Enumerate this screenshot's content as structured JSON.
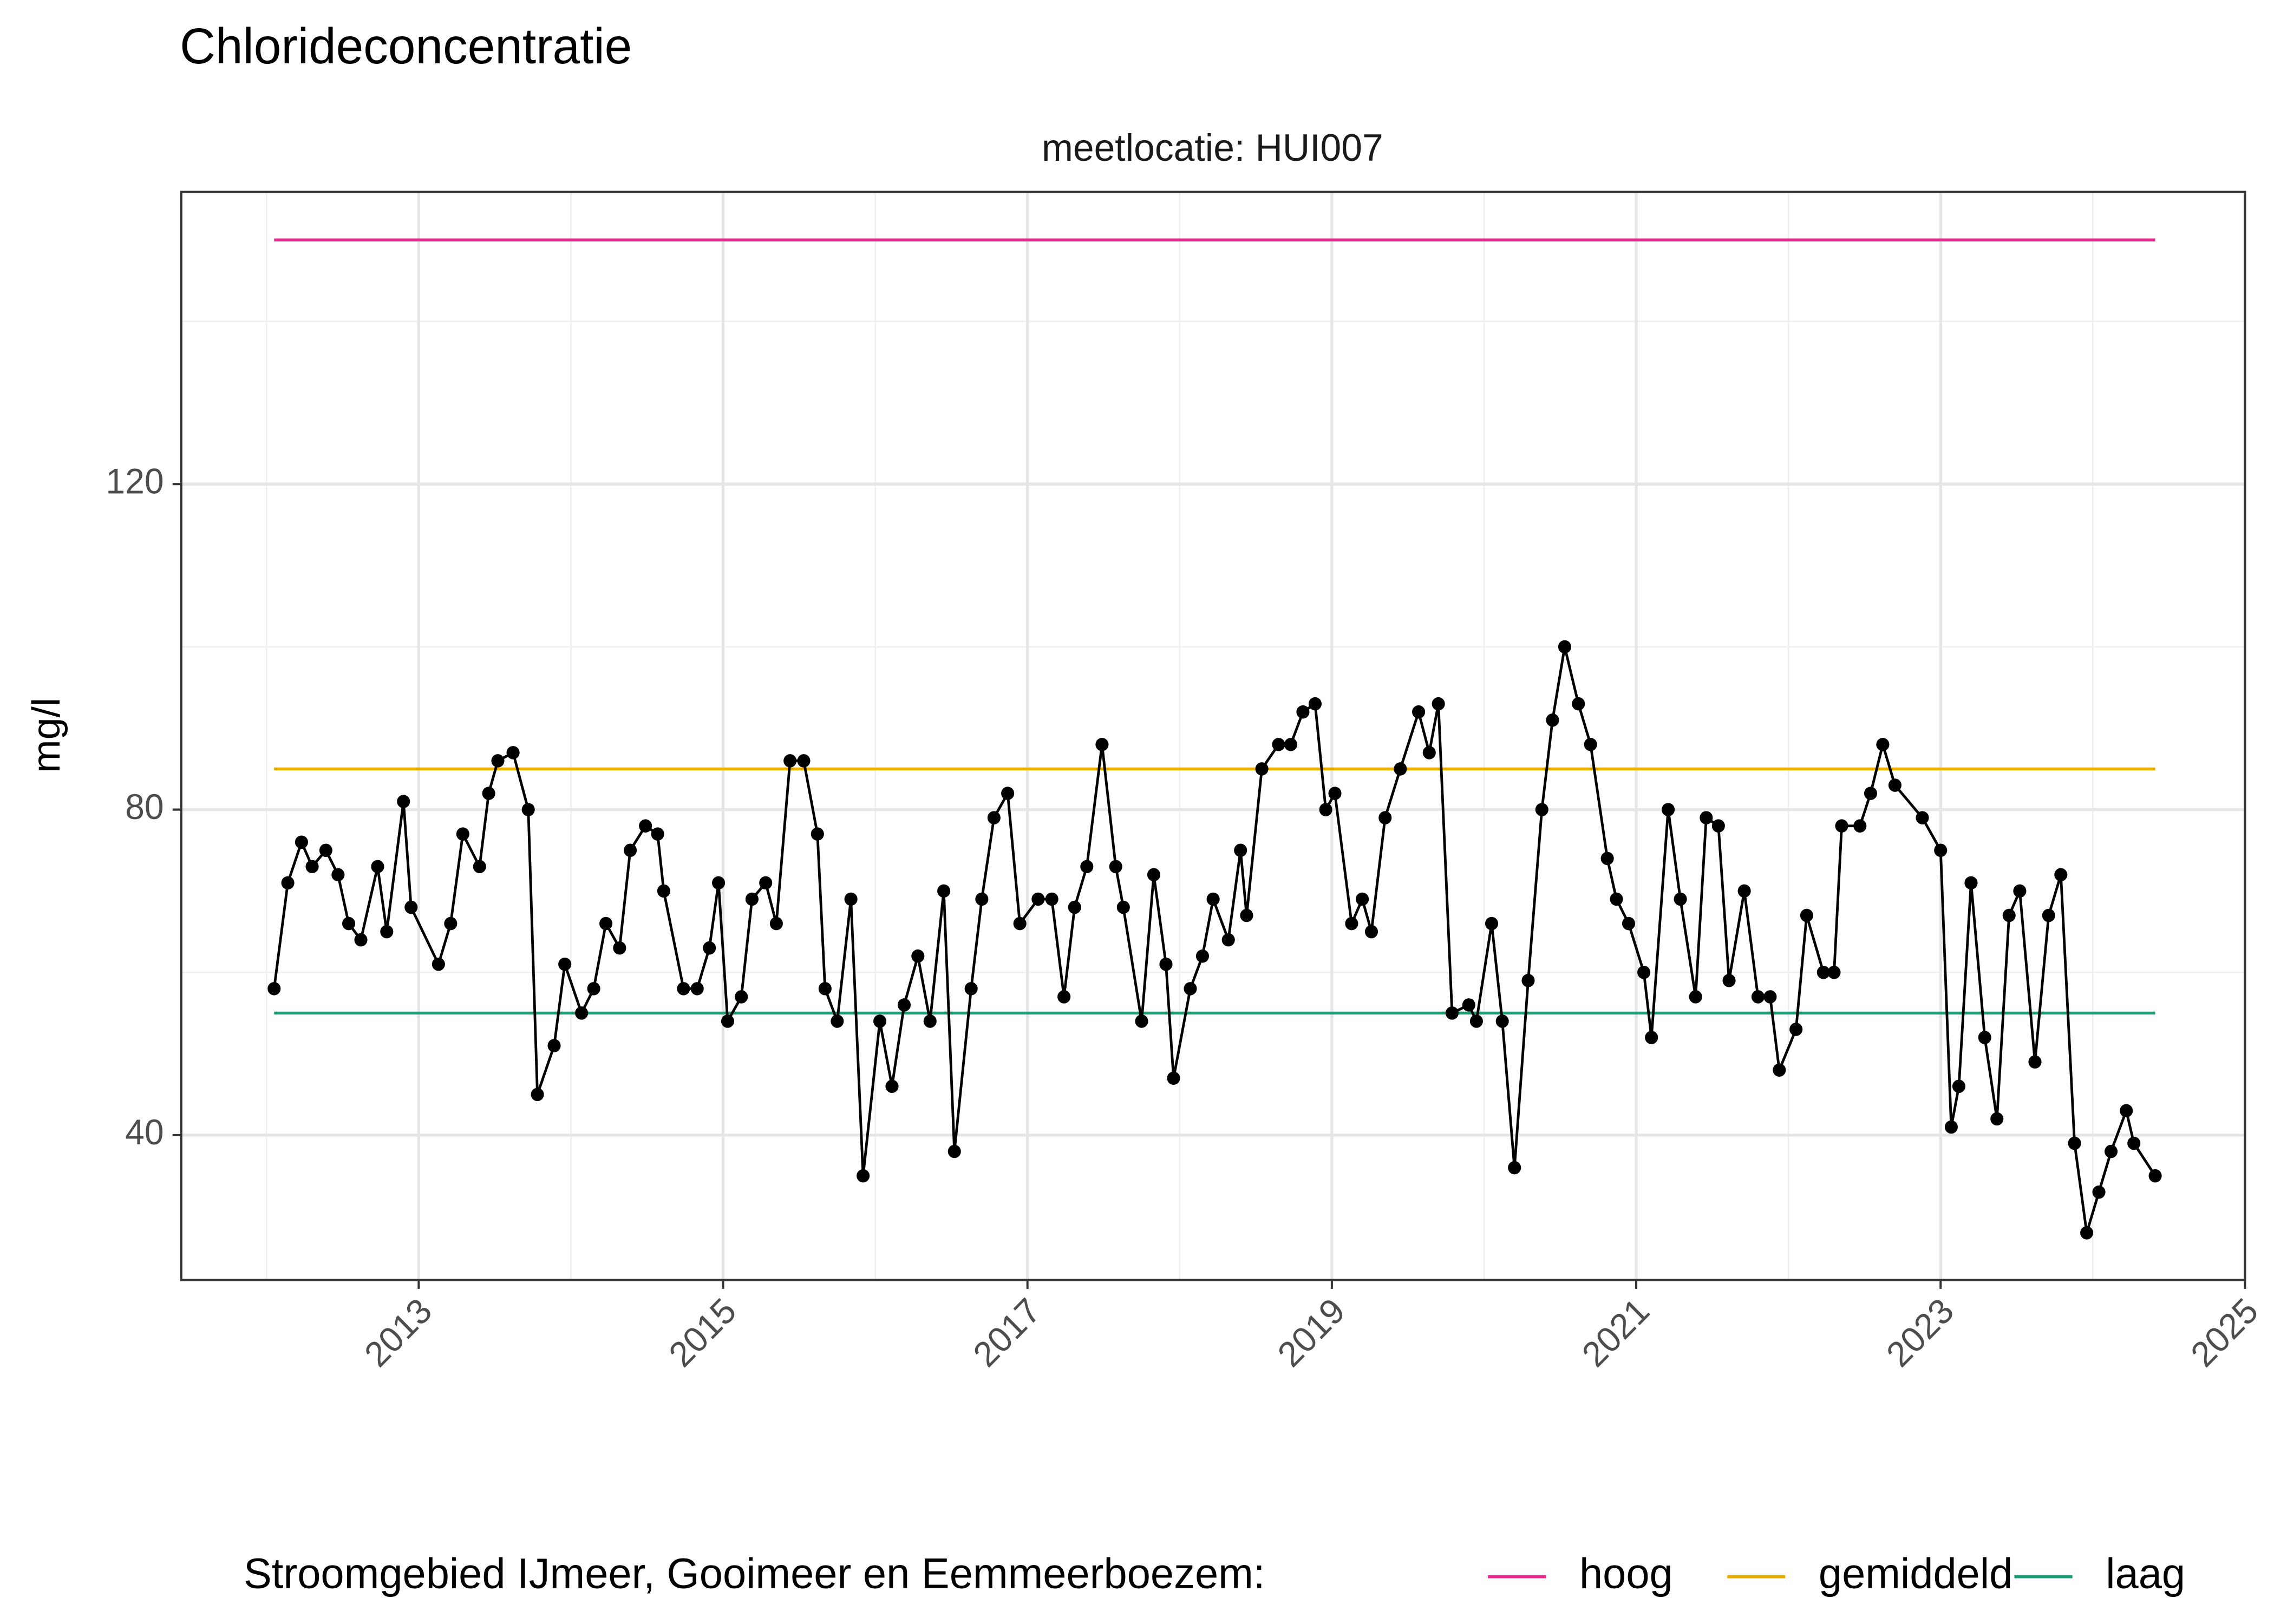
{
  "chart_data": {
    "type": "line",
    "title": "Chlorideconcentratie",
    "subtitle": "meetlocatie: HUI007",
    "ylabel": "mg/l",
    "legend_title": "Stroomgebied IJmeer, Gooimeer en Eemmeerboezem:",
    "legend_position": "bottom",
    "grid": true,
    "color": "#000000",
    "xlim": [
      2011.44,
      2025
    ],
    "xticks": [
      2013,
      2015,
      2017,
      2019,
      2021,
      2023,
      2025
    ],
    "ylim": [
      22.2,
      155.9
    ],
    "yticks": [
      40,
      80,
      120
    ],
    "x": [
      2012.05,
      2012.14,
      2012.23,
      2012.3,
      2012.39,
      2012.47,
      2012.54,
      2012.62,
      2012.73,
      2012.79,
      2012.9,
      2012.95,
      2013.13,
      2013.21,
      2013.29,
      2013.4,
      2013.46,
      2013.52,
      2013.62,
      2013.72,
      2013.78,
      2013.89,
      2013.96,
      2014.07,
      2014.15,
      2014.23,
      2014.32,
      2014.39,
      2014.49,
      2014.57,
      2014.61,
      2014.74,
      2014.83,
      2014.91,
      2014.97,
      2015.03,
      2015.12,
      2015.19,
      2015.28,
      2015.35,
      2015.44,
      2015.53,
      2015.62,
      2015.67,
      2015.75,
      2015.84,
      2015.92,
      2016.03,
      2016.11,
      2016.19,
      2016.28,
      2016.36,
      2016.45,
      2016.52,
      2016.63,
      2016.7,
      2016.78,
      2016.87,
      2016.95,
      2017.07,
      2017.16,
      2017.24,
      2017.31,
      2017.39,
      2017.49,
      2017.58,
      2017.63,
      2017.75,
      2017.83,
      2017.91,
      2017.96,
      2018.07,
      2018.15,
      2018.22,
      2018.32,
      2018.4,
      2018.44,
      2018.54,
      2018.65,
      2018.73,
      2018.81,
      2018.89,
      2018.96,
      2019.02,
      2019.13,
      2019.2,
      2019.26,
      2019.35,
      2019.45,
      2019.57,
      2019.64,
      2019.7,
      2019.79,
      2019.9,
      2019.95,
      2020.05,
      2020.12,
      2020.2,
      2020.29,
      2020.38,
      2020.45,
      2020.53,
      2020.62,
      2020.7,
      2020.81,
      2020.87,
      2020.95,
      2021.05,
      2021.1,
      2021.21,
      2021.29,
      2021.39,
      2021.46,
      2021.54,
      2021.61,
      2021.71,
      2021.8,
      2021.88,
      2021.94,
      2022.05,
      2022.12,
      2022.23,
      2022.3,
      2022.35,
      2022.47,
      2022.54,
      2022.62,
      2022.7,
      2022.88,
      2023.0,
      2023.07,
      2023.12,
      2023.2,
      2023.29,
      2023.37,
      2023.45,
      2023.52,
      2023.62,
      2023.71,
      2023.79,
      2023.88,
      2023.96,
      2024.04,
      2024.12,
      2024.22,
      2024.27,
      2024.41
    ],
    "values": [
      58,
      71,
      76,
      73,
      75,
      72,
      66,
      64,
      73,
      65,
      81,
      68,
      61,
      66,
      77,
      73,
      82,
      86,
      87,
      80,
      45,
      51,
      61,
      55,
      58,
      66,
      63,
      75,
      78,
      77,
      70,
      58,
      58,
      63,
      71,
      54,
      57,
      69,
      71,
      66,
      86,
      86,
      77,
      58,
      54,
      69,
      35,
      54,
      46,
      56,
      62,
      54,
      70,
      38,
      58,
      69,
      79,
      82,
      66,
      69,
      69,
      57,
      68,
      73,
      88,
      73,
      68,
      54,
      72,
      61,
      47,
      58,
      62,
      69,
      64,
      75,
      67,
      85,
      88,
      88,
      92,
      93,
      80,
      82,
      66,
      69,
      65,
      79,
      85,
      92,
      87,
      93,
      55,
      56,
      54,
      66,
      54,
      36,
      59,
      80,
      91,
      100,
      93,
      88,
      74,
      69,
      66,
      60,
      52,
      80,
      69,
      57,
      79,
      78,
      59,
      70,
      57,
      57,
      48,
      53,
      67,
      60,
      60,
      78,
      78,
      82,
      88,
      83,
      79,
      75,
      41,
      46,
      71,
      52,
      42,
      67,
      70,
      49,
      67,
      72,
      39,
      28,
      33,
      38,
      43,
      39,
      35
    ],
    "series": [
      {
        "name": "hoog",
        "color": "#e7298a",
        "x": [
          2012.05,
          2024.41
        ],
        "values": [
          150,
          150
        ]
      },
      {
        "name": "gemiddeld",
        "color": "#e6ab02",
        "x": [
          2012.05,
          2024.41
        ],
        "values": [
          85,
          85
        ]
      },
      {
        "name": "laag",
        "color": "#1b9e77",
        "x": [
          2012.05,
          2024.41
        ],
        "values": [
          55,
          55
        ]
      }
    ]
  }
}
